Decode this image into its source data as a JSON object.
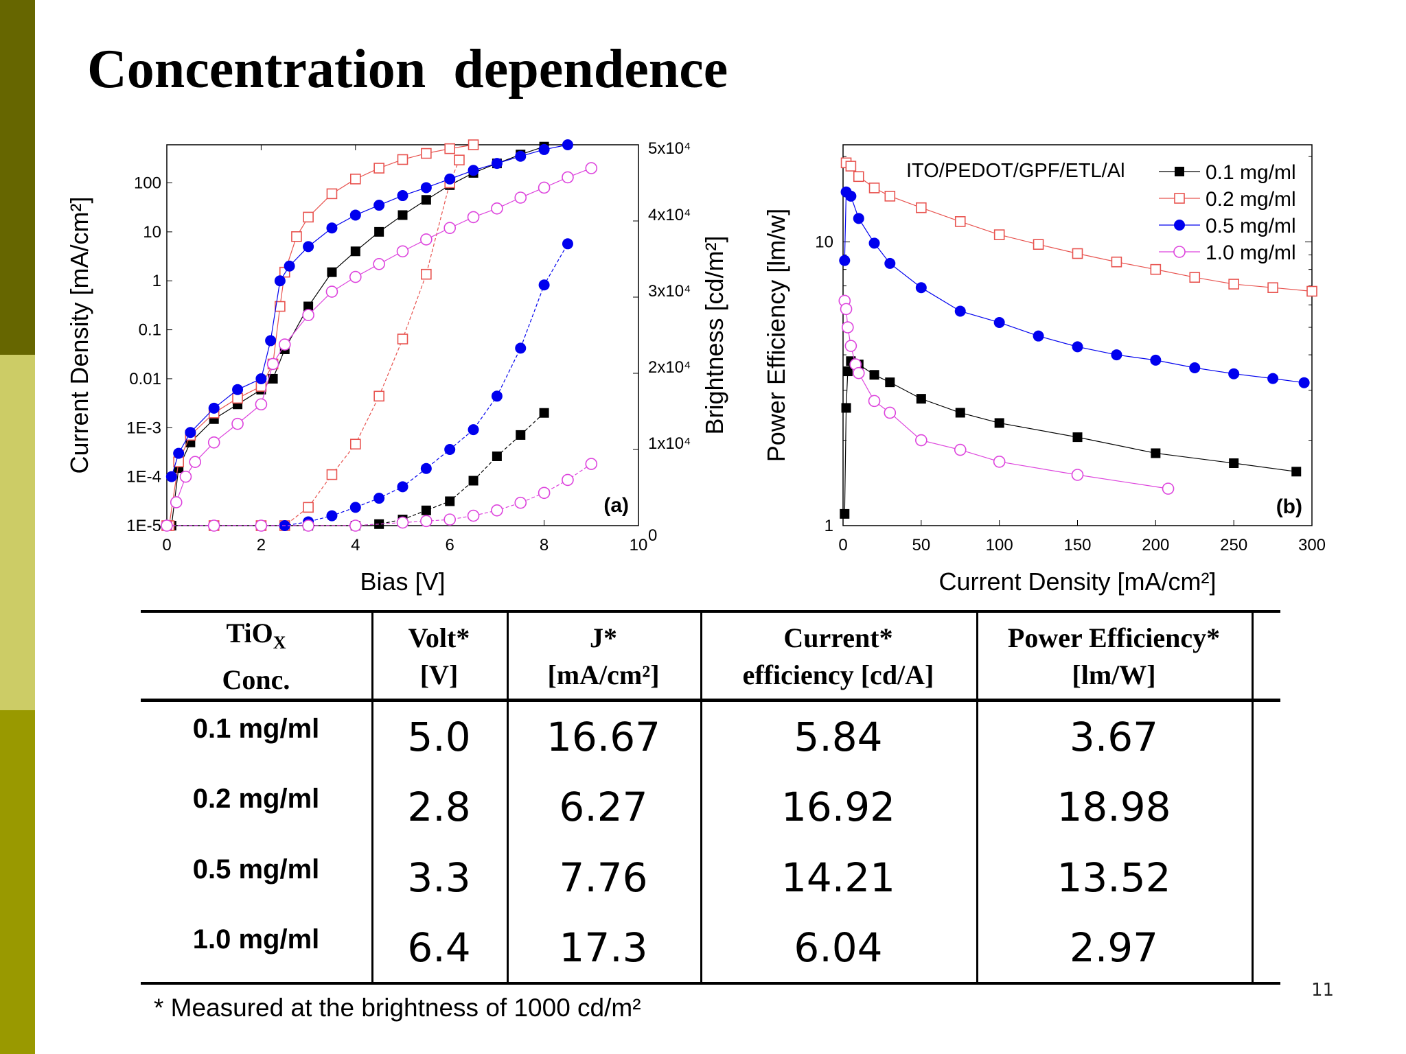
{
  "theme": {
    "bar_top": "#666600",
    "bar_mid": "#cccc66",
    "bar_bottom": "#999900"
  },
  "title": "Concentration  dependence",
  "chart_data": [
    {
      "type": "scatter",
      "panel_label": "(a)",
      "xlabel": "Bias [V]",
      "ylabel": "Current Density [mA/cm²]",
      "y2label": "Brightness [cd/m²]",
      "xlim": [
        0,
        10
      ],
      "ylim": [
        1e-05,
        600
      ],
      "yscale": "log",
      "y2lim": [
        0,
        50000
      ],
      "xticks": [
        "0",
        "2",
        "4",
        "6",
        "8",
        "10"
      ],
      "yticks": [
        "1E-5",
        "1E-4",
        "1E-3",
        "0.01",
        "0.1",
        "1",
        "10",
        "100"
      ],
      "y2ticks": [
        "0",
        "1x10⁴",
        "2x10⁴",
        "3x10⁴",
        "4x10⁴",
        "5x10⁴"
      ],
      "series": [
        {
          "name": "0.1 mg/ml",
          "color": "#000000",
          "marker": "square-filled",
          "current_density": {
            "x": [
              0.1,
              0.25,
              0.5,
              1,
              1.5,
              2,
              2.25,
              2.5,
              3,
              3.5,
              4,
              4.5,
              5,
              5.5,
              6,
              6.5,
              7,
              7.5,
              8
            ],
            "y": [
              1e-05,
              0.00015,
              0.0005,
              0.0015,
              0.003,
              0.006,
              0.01,
              0.04,
              0.3,
              1.5,
              4,
              10,
              22,
              45,
              90,
              160,
              250,
              380,
              550
            ]
          },
          "brightness": {
            "x": [
              0,
              1,
              2,
              3,
              4,
              4.5,
              5,
              5.5,
              6,
              6.5,
              7,
              7.5,
              8
            ],
            "y": [
              0,
              0,
              0,
              0,
              0,
              200,
              800,
              2000,
              3200,
              5900,
              9100,
              11900,
              14800
            ]
          }
        },
        {
          "name": "0.2 mg/ml",
          "color": "#e8534f",
          "marker": "square-open",
          "current_density": {
            "x": [
              0.05,
              0.25,
              0.5,
              1,
              1.5,
              2,
              2.25,
              2.4,
              2.5,
              2.75,
              3,
              3.5,
              4,
              4.5,
              5,
              5.5,
              6,
              6.5
            ],
            "y": [
              1e-05,
              0.0002,
              0.0007,
              0.002,
              0.004,
              0.007,
              0.02,
              0.3,
              1.5,
              8,
              20,
              60,
              120,
              200,
              300,
              400,
              500,
              600
            ]
          },
          "brightness": {
            "x": [
              0,
              1,
              2,
              2.5,
              3,
              3.5,
              4,
              4.5,
              5,
              5.5,
              6,
              6.2
            ],
            "y": [
              0,
              0,
              0,
              0,
              2400,
              6700,
              10700,
              17000,
              24500,
              33000,
              45000,
              48000
            ]
          }
        },
        {
          "name": "0.5 mg/ml",
          "color": "#0000ee",
          "marker": "circle-filled",
          "current_density": {
            "x": [
              0.1,
              0.25,
              0.5,
              1,
              1.5,
              2,
              2.2,
              2.4,
              2.6,
              3,
              3.5,
              4,
              4.5,
              5,
              5.5,
              6,
              6.5,
              7,
              7.5,
              8,
              8.5
            ],
            "y": [
              0.0001,
              0.0003,
              0.0008,
              0.0025,
              0.006,
              0.01,
              0.06,
              1,
              2,
              5,
              12,
              22,
              35,
              55,
              80,
              120,
              180,
              250,
              350,
              480,
              600
            ]
          },
          "brightness": {
            "x": [
              0,
              1,
              2,
              2.5,
              3,
              3.5,
              4,
              4.5,
              5,
              5.5,
              6,
              6.5,
              7,
              7.5,
              8,
              8.5
            ],
            "y": [
              0,
              0,
              0,
              0,
              500,
              1300,
              2400,
              3600,
              5100,
              7500,
              10000,
              12600,
              17000,
              23300,
              31600,
              37000
            ]
          }
        },
        {
          "name": "1.0 mg/ml",
          "color": "#dd44dd",
          "marker": "circle-open",
          "current_density": {
            "x": [
              0.2,
              0.4,
              0.6,
              1,
              1.5,
              2,
              2.25,
              2.5,
              3,
              3.5,
              4,
              4.5,
              5,
              5.5,
              6,
              6.5,
              7,
              7.5,
              8,
              8.5,
              9
            ],
            "y": [
              3e-05,
              0.0001,
              0.0002,
              0.0005,
              0.0012,
              0.003,
              0.02,
              0.05,
              0.2,
              0.6,
              1.2,
              2.2,
              4,
              7,
              12,
              20,
              30,
              50,
              80,
              130,
              200
            ]
          },
          "brightness": {
            "x": [
              0,
              1,
              2,
              3,
              4,
              5,
              5.5,
              6,
              6.5,
              7,
              7.5,
              8,
              8.5,
              9
            ],
            "y": [
              0,
              0,
              0,
              0,
              0,
              400,
              600,
              800,
              1300,
              2000,
              3000,
              4300,
              6000,
              8100
            ]
          }
        }
      ]
    },
    {
      "type": "line",
      "panel_label": "(b)",
      "annotation": "ITO/PEDOT/GPF/ETL/Al",
      "xlabel": "Current Density [mA/cm²]",
      "ylabel": "Power Efficiency [lm/w]",
      "xlim": [
        0,
        300
      ],
      "ylim": [
        1,
        22
      ],
      "yscale": "log",
      "xticks": [
        "0",
        "50",
        "100",
        "150",
        "200",
        "250",
        "300"
      ],
      "yticks": [
        "1",
        "10"
      ],
      "legend": "top-right",
      "series": [
        {
          "name": "0.1 mg/ml",
          "color": "#000000",
          "marker": "square-filled",
          "x": [
            1,
            2,
            3,
            5,
            10,
            20,
            30,
            50,
            75,
            100,
            150,
            200,
            250,
            290
          ],
          "y": [
            1.1,
            2.6,
            3.5,
            3.8,
            3.7,
            3.4,
            3.2,
            2.8,
            2.5,
            2.3,
            2.05,
            1.8,
            1.66,
            1.55
          ]
        },
        {
          "name": "0.2 mg/ml",
          "color": "#e8534f",
          "marker": "square-open",
          "x": [
            2,
            5,
            10,
            20,
            30,
            50,
            75,
            100,
            125,
            150,
            175,
            200,
            225,
            250,
            275,
            300
          ],
          "y": [
            19,
            18.5,
            17,
            15.5,
            14.5,
            13.2,
            11.8,
            10.6,
            9.8,
            9.1,
            8.5,
            8,
            7.5,
            7.1,
            6.9,
            6.7
          ]
        },
        {
          "name": "0.5 mg/ml",
          "color": "#0000ee",
          "marker": "circle-filled",
          "x": [
            1,
            2,
            5,
            10,
            20,
            30,
            50,
            75,
            100,
            125,
            150,
            175,
            200,
            225,
            250,
            275,
            295
          ],
          "y": [
            8.6,
            15,
            14.5,
            12.1,
            9.9,
            8.4,
            6.9,
            5.7,
            5.2,
            4.66,
            4.27,
            4.0,
            3.83,
            3.6,
            3.43,
            3.3,
            3.19
          ]
        },
        {
          "name": "1.0 mg/ml",
          "color": "#dd44dd",
          "marker": "circle-open",
          "x": [
            1,
            2,
            3,
            5,
            8,
            10,
            20,
            30,
            50,
            75,
            100,
            150,
            208
          ],
          "y": [
            6.2,
            5.8,
            5.0,
            4.3,
            3.7,
            3.45,
            2.75,
            2.5,
            2.0,
            1.85,
            1.68,
            1.51,
            1.35
          ]
        }
      ]
    }
  ],
  "table": {
    "headers": [
      {
        "line1": "TiO",
        "sub": "X",
        "line2": "Conc."
      },
      {
        "line1": "Volt*",
        "line2": "[V]"
      },
      {
        "line1": "J*",
        "line2": "[mA/cm²]"
      },
      {
        "line1": "Current*",
        "line2": "efficiency [cd/A]"
      },
      {
        "line1": "Power Efficiency*",
        "line2": "[lm/W]"
      }
    ],
    "rows": [
      [
        "0.1 mg/ml",
        "5.0",
        "16.67",
        "5.84",
        "3.67"
      ],
      [
        "0.2 mg/ml",
        "2.8",
        "6.27",
        "16.92",
        "18.98"
      ],
      [
        "0.5 mg/ml",
        "3.3",
        "7.76",
        "14.21",
        "13.52"
      ],
      [
        "1.0 mg/ml",
        "6.4",
        "17.3",
        "6.04",
        "2.97"
      ]
    ]
  },
  "footnote": "* Measured at the brightness of 1000 cd/m²",
  "page_number": "11"
}
